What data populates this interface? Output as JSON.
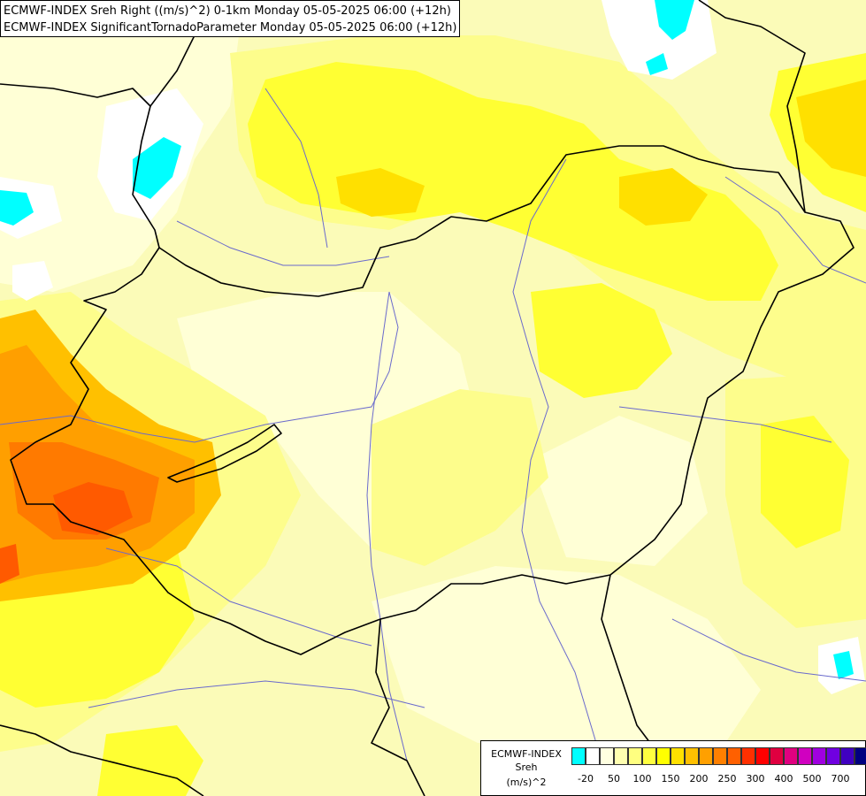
{
  "header": {
    "line1": "ECMWF-INDEX Sreh Right ((m/s)^2) 0-1km Monday 05-05-2025 06:00 (+12h)",
    "line2": "ECMWF-INDEX SignificantTornadoParameter Monday 05-05-2025 06:00 (+12h)"
  },
  "legend": {
    "title1": "ECMWF-INDEX",
    "title2": "Sreh",
    "units": "(m/s)^2",
    "colors": [
      "#00ffff",
      "#ffffff",
      "#ffffe0",
      "#ffffb0",
      "#ffff80",
      "#ffff40",
      "#ffff00",
      "#ffe000",
      "#ffc000",
      "#ffa000",
      "#ff8000",
      "#ff6000",
      "#ff3000",
      "#ff0000",
      "#e00040",
      "#e00080",
      "#d000c0",
      "#a000e0",
      "#7000e0",
      "#4000c0",
      "#000080"
    ],
    "ticks": [
      "-20",
      "50",
      "100",
      "150",
      "200",
      "250",
      "300",
      "400",
      "500",
      "700"
    ]
  },
  "field_colors": {
    "background": "#fbfbb8",
    "pale": "#ffffd6",
    "light": "#fdfd8c",
    "yellow": "#ffff33",
    "gold": "#ffe000",
    "amber": "#ffc000",
    "orange": "#ff9f00",
    "deep_orange": "#ff7a00",
    "red_orange": "#ff5a00",
    "cyan": "#00ffff",
    "white": "#ffffff",
    "border": "#000000",
    "river": "#6a6acc"
  }
}
